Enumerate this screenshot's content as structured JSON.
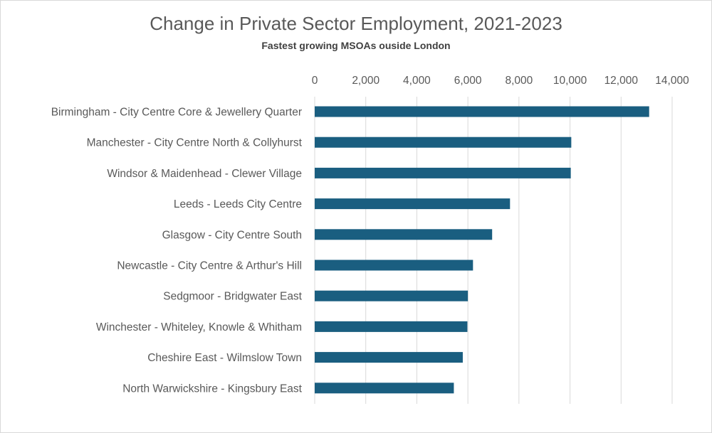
{
  "chart_data": {
    "type": "bar",
    "orientation": "horizontal",
    "title": "Change in Private Sector Employment, 2021-2023",
    "subtitle": "Fastest growing MSOAs ouside London",
    "categories": [
      "Birmingham - City Centre Core & Jewellery Quarter",
      "Manchester - City Centre North & Collyhurst",
      "Windsor & Maidenhead - Clewer Village",
      "Leeds - Leeds City Centre",
      "Glasgow - City Centre South",
      "Newcastle - City Centre & Arthur's Hill",
      "Sedgmoor - Bridgwater East",
      "Winchester - Whiteley, Knowle & Whitham",
      "Cheshire East - Wilmslow Town",
      "North Warwickshire - Kingsbury East"
    ],
    "values": [
      13100,
      10050,
      10030,
      7650,
      6950,
      6200,
      6000,
      5980,
      5800,
      5450
    ],
    "xlim": [
      0,
      14000
    ],
    "ticks": [
      0,
      2000,
      4000,
      6000,
      8000,
      10000,
      12000,
      14000
    ],
    "tick_labels": [
      "0",
      "2,000",
      "4,000",
      "6,000",
      "8,000",
      "10,000",
      "12,000",
      "14,000"
    ],
    "axis_position": "top",
    "grid": true,
    "bar_color": "#1a5e80",
    "grid_color": "#d9d9d9"
  }
}
